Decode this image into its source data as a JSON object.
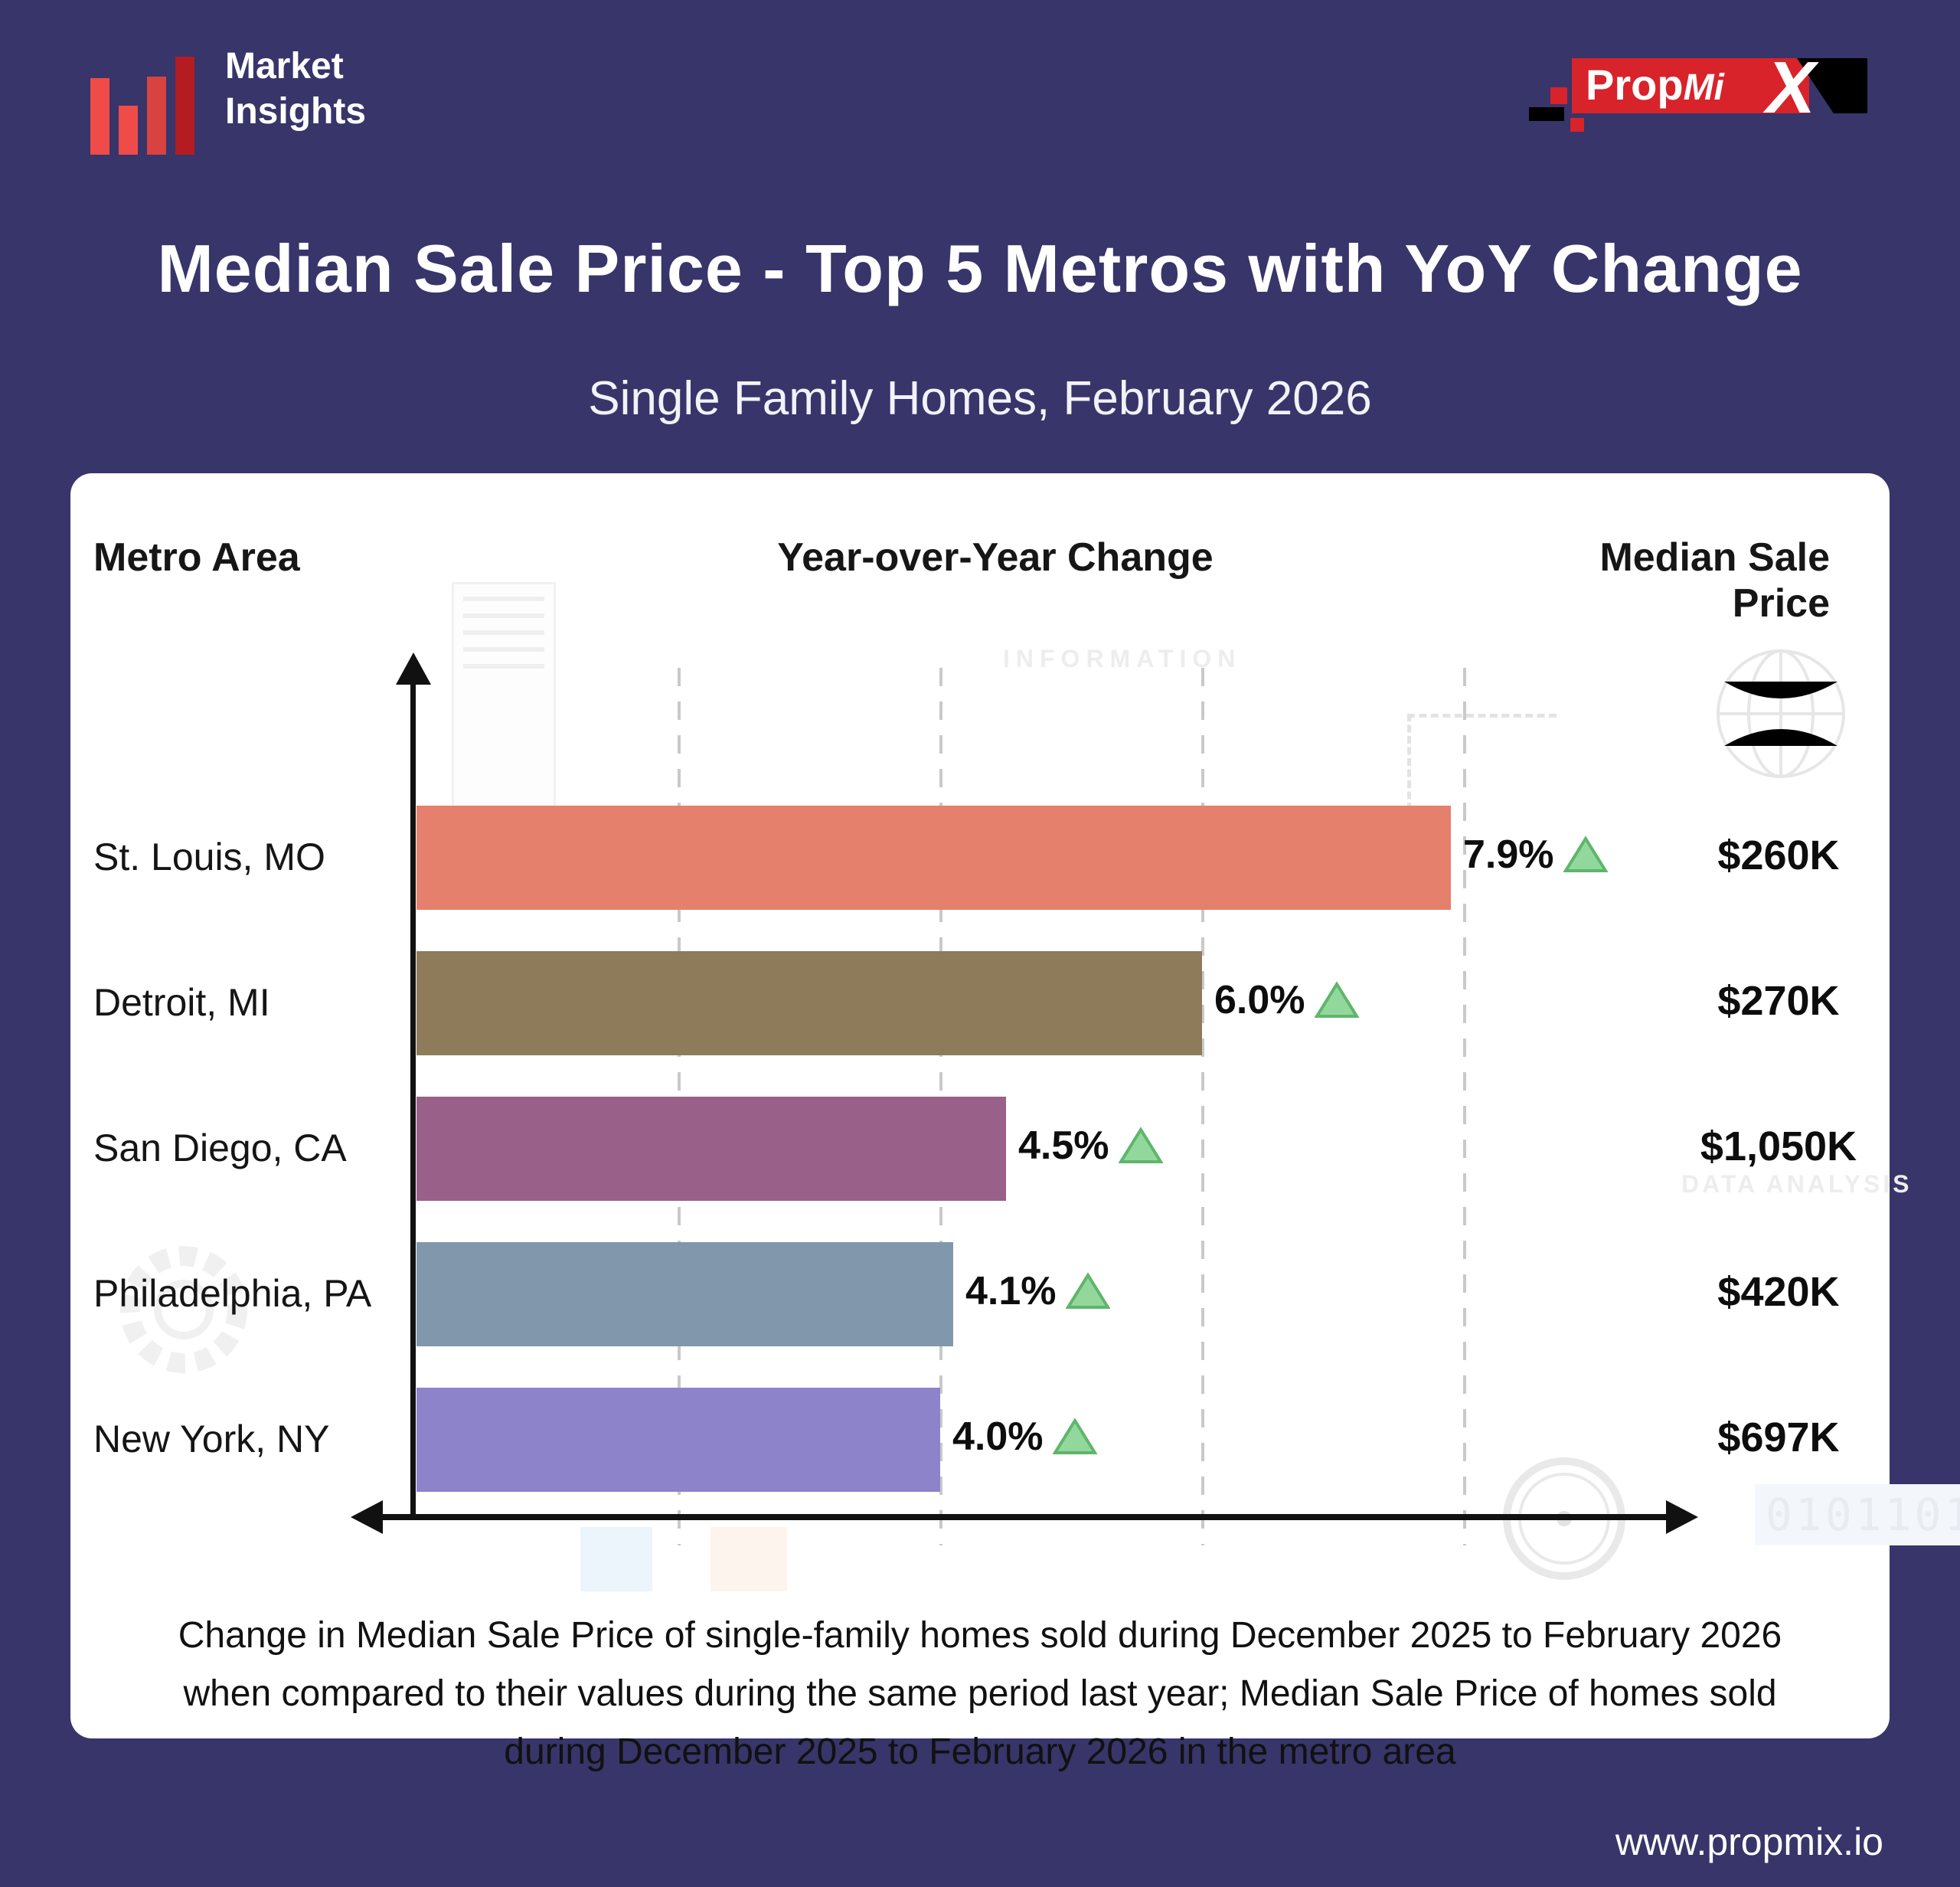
{
  "brand": {
    "logo_line1": "Market",
    "logo_line2": "Insights",
    "partner": {
      "prop": "Prop",
      "mi": "Mi",
      "x": "X"
    }
  },
  "title": "Median Sale Price - Top 5 Metros with YoY Change",
  "subtitle": "Single Family Homes, February 2026",
  "chart_data": {
    "type": "bar",
    "orientation": "horizontal",
    "columns": [
      "Metro Area",
      "Year-over-Year Change",
      "Median Sale Price"
    ],
    "categories": [
      "St. Louis, MO",
      "Detroit, MI",
      "San Diego, CA",
      "Philadelphia, PA",
      "New York, NY"
    ],
    "series": [
      {
        "name": "Year-over-Year Change (%)",
        "values": [
          7.9,
          6.0,
          4.5,
          4.1,
          4.0
        ]
      }
    ],
    "yoy_change_labels": [
      "7.9%",
      "6.0%",
      "4.5%",
      "4.1%",
      "4.0%"
    ],
    "median_sale_price_labels": [
      "$260K",
      "$270K",
      "$1,050K",
      "$420K",
      "$697K"
    ],
    "trend_direction": [
      "up",
      "up",
      "up",
      "up",
      "up"
    ],
    "bar_colors": [
      "#e5806c",
      "#8e7b59",
      "#99608a",
      "#8097ac",
      "#8d83cb"
    ],
    "trend_icon_fill": "#92d89c",
    "trend_icon_stroke": "#5fb56b",
    "xlim_pct": [
      0,
      8.1
    ],
    "gridlines_pct": [
      2,
      4,
      6,
      8
    ],
    "grid_visible": true,
    "legend_position": "none"
  },
  "caption": "Change in Median Sale Price of single-family homes sold during December 2025 to February 2026 when compared to their values during the same period last year; Median Sale Price of homes sold during December 2025 to February 2026 in the metro area",
  "footer": {
    "website": "www.propmix.io"
  },
  "watermarks": {
    "information": "INFORMATION",
    "data_analysis": "DATA ANALYSIS",
    "binary": "0101101"
  },
  "colors": {
    "background": "#373569",
    "card": "#ffffff",
    "title_text": "#ffffff",
    "axis": "#111111",
    "gridline": "#c9c9c9",
    "logo_red_light": "#ef4b48",
    "logo_red_mid": "#d84341",
    "logo_red_dark": "#b51c22",
    "propmix_red": "#d8232a",
    "propmix_black": "#000000"
  }
}
